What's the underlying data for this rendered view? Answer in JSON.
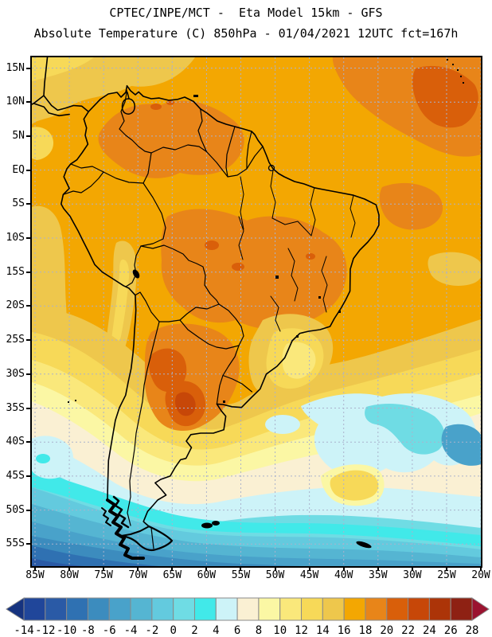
{
  "header": {
    "title_line1": "CPTEC/INPE/MCT -  Eta Model 15km - GFS",
    "title_line2": "Absolute Temperature (C) 850hPa - 01/04/2021 12UTC fct=167h"
  },
  "map": {
    "lat_labels": [
      "15N",
      "10N",
      "5N",
      "EQ",
      "5S",
      "10S",
      "15S",
      "20S",
      "25S",
      "30S",
      "35S",
      "40S",
      "45S",
      "50S",
      "55S"
    ],
    "lon_labels": [
      "85W",
      "80W",
      "75W",
      "70W",
      "65W",
      "60W",
      "55W",
      "50W",
      "45W",
      "40W",
      "35W",
      "30W",
      "25W",
      "20W"
    ]
  },
  "colorbar": {
    "tick_labels": [
      "-14",
      "-12",
      "-10",
      "-8",
      "-6",
      "-4",
      "-2",
      "0",
      "2",
      "4",
      "6",
      "8",
      "10",
      "12",
      "14",
      "16",
      "18",
      "20",
      "22",
      "24",
      "26",
      "28"
    ],
    "cell_colors": [
      "#20469a",
      "#2a5aa6",
      "#2f71b2",
      "#3c8cbe",
      "#49a2ca",
      "#55b5d2",
      "#63cade",
      "#6fdce4",
      "#41e9e9",
      "#cdf3f8",
      "#faf0d3",
      "#fbf7a4",
      "#fae87b",
      "#f7d958",
      "#eec74c",
      "#f3a702",
      "#e88519",
      "#d95f0a",
      "#c74708",
      "#ac3408",
      "#8e2113"
    ],
    "left_arrow_color": "#16337f",
    "right_arrow_color": "#9b1330",
    "cell_border_color": "#8a8a8a",
    "units": "C"
  },
  "palette": {
    "base_16_18": "#f3a702",
    "c18_20": "#e88519",
    "c20_22": "#d95f0a",
    "c22_24": "#c74708",
    "c14_16": "#eec74c",
    "c12_14": "#f7d958",
    "c10_12": "#fae87b",
    "c8_10": "#fbf7a4",
    "c6_8": "#faf0d3",
    "c4_6": "#cdf3f8",
    "c2_4": "#41e9e9",
    "c0_2": "#6fdce4",
    "cm2_0": "#63cade",
    "cm4_m2": "#55b5d2",
    "cm6_m4": "#49a2ca",
    "cm8_m6": "#3c8cbe",
    "cm10_m8": "#2f71b2",
    "cm12_m10": "#2a5aa6",
    "grid": "#aab2cc",
    "outline": "#000000"
  }
}
